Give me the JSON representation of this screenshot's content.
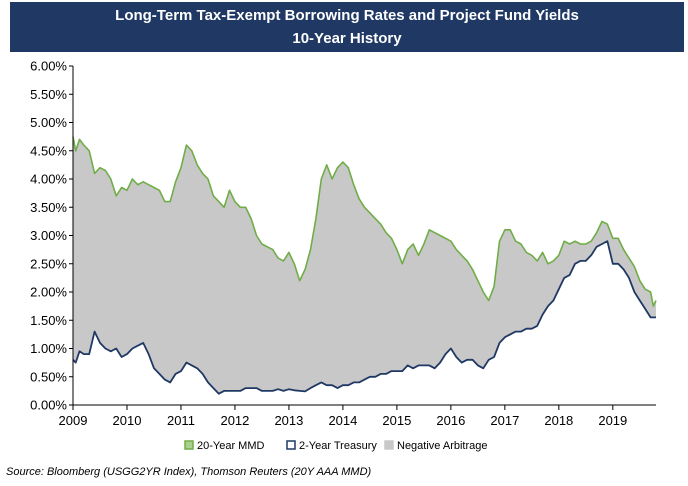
{
  "header": {
    "title": "Long-Term Tax-Exempt Borrowing Rates and Project Fund Yields",
    "subtitle": "10-Year History"
  },
  "source": "Source: Bloomberg (USGG2YR Index), Thomson Reuters (20Y AAA MMD)",
  "colors": {
    "mmd": "#70ad47",
    "treasury": "#1f3864",
    "fill": "#c8c8c8",
    "title_bg": "#1f3864"
  },
  "chart_data": {
    "type": "area",
    "title": "Long-Term Tax-Exempt Borrowing Rates and Project Fund Yields",
    "subtitle": "10-Year History",
    "x_ticks": [
      "2009",
      "2010",
      "2011",
      "2012",
      "2013",
      "2014",
      "2015",
      "2016",
      "2017",
      "2018",
      "2019"
    ],
    "y_ticks": [
      "0.00%",
      "0.50%",
      "1.00%",
      "1.50%",
      "2.00%",
      "2.50%",
      "3.00%",
      "3.50%",
      "4.00%",
      "4.50%",
      "5.00%",
      "5.50%",
      "6.00%"
    ],
    "xlim": [
      2009.0,
      2019.8
    ],
    "ylim": [
      0,
      6
    ],
    "legend_position": "bottom",
    "grid": false,
    "series": [
      {
        "name": "20-Year MMD",
        "x": [
          2009.0,
          2009.05,
          2009.12,
          2009.2,
          2009.3,
          2009.4,
          2009.5,
          2009.6,
          2009.7,
          2009.8,
          2009.9,
          2010.0,
          2010.1,
          2010.2,
          2010.3,
          2010.4,
          2010.5,
          2010.6,
          2010.7,
          2010.8,
          2010.9,
          2011.0,
          2011.1,
          2011.2,
          2011.3,
          2011.4,
          2011.5,
          2011.6,
          2011.7,
          2011.8,
          2011.9,
          2012.0,
          2012.1,
          2012.2,
          2012.3,
          2012.4,
          2012.5,
          2012.6,
          2012.7,
          2012.8,
          2012.9,
          2013.0,
          2013.1,
          2013.2,
          2013.3,
          2013.4,
          2013.5,
          2013.6,
          2013.7,
          2013.8,
          2013.9,
          2014.0,
          2014.1,
          2014.2,
          2014.3,
          2014.4,
          2014.5,
          2014.6,
          2014.7,
          2014.8,
          2014.9,
          2015.0,
          2015.1,
          2015.2,
          2015.3,
          2015.4,
          2015.5,
          2015.6,
          2015.7,
          2015.8,
          2015.9,
          2016.0,
          2016.1,
          2016.2,
          2016.3,
          2016.4,
          2016.5,
          2016.6,
          2016.7,
          2016.8,
          2016.9,
          2017.0,
          2017.1,
          2017.2,
          2017.3,
          2017.4,
          2017.5,
          2017.6,
          2017.7,
          2017.8,
          2017.9,
          2018.0,
          2018.1,
          2018.2,
          2018.3,
          2018.4,
          2018.5,
          2018.6,
          2018.7,
          2018.8,
          2018.9,
          2019.0,
          2019.1,
          2019.2,
          2019.3,
          2019.4,
          2019.5,
          2019.6,
          2019.7,
          2019.75,
          2019.8
        ],
        "values": [
          4.75,
          4.5,
          4.7,
          4.6,
          4.5,
          4.1,
          4.2,
          4.15,
          4.0,
          3.7,
          3.85,
          3.8,
          4.0,
          3.9,
          3.95,
          3.9,
          3.85,
          3.8,
          3.6,
          3.6,
          3.95,
          4.2,
          4.6,
          4.5,
          4.25,
          4.1,
          4.0,
          3.7,
          3.6,
          3.5,
          3.8,
          3.6,
          3.5,
          3.5,
          3.3,
          3.0,
          2.85,
          2.8,
          2.75,
          2.6,
          2.55,
          2.7,
          2.5,
          2.2,
          2.4,
          2.75,
          3.3,
          4.0,
          4.25,
          4.0,
          4.2,
          4.3,
          4.2,
          3.9,
          3.65,
          3.5,
          3.4,
          3.3,
          3.2,
          3.05,
          2.95,
          2.75,
          2.5,
          2.75,
          2.85,
          2.65,
          2.85,
          3.1,
          3.05,
          3.0,
          2.95,
          2.9,
          2.75,
          2.65,
          2.55,
          2.4,
          2.2,
          2.0,
          1.85,
          2.1,
          2.9,
          3.1,
          3.1,
          2.9,
          2.85,
          2.7,
          2.65,
          2.55,
          2.7,
          2.5,
          2.55,
          2.65,
          2.9,
          2.85,
          2.9,
          2.85,
          2.85,
          2.9,
          3.05,
          3.25,
          3.2,
          2.95,
          2.95,
          2.75,
          2.6,
          2.45,
          2.2,
          2.05,
          2.0,
          1.75,
          1.85
        ]
      },
      {
        "name": "2-Year Treasury",
        "x": [
          2009.0,
          2009.05,
          2009.12,
          2009.2,
          2009.3,
          2009.4,
          2009.5,
          2009.6,
          2009.7,
          2009.8,
          2009.9,
          2010.0,
          2010.1,
          2010.2,
          2010.3,
          2010.4,
          2010.5,
          2010.6,
          2010.7,
          2010.8,
          2010.9,
          2011.0,
          2011.1,
          2011.2,
          2011.3,
          2011.4,
          2011.5,
          2011.6,
          2011.7,
          2011.8,
          2011.9,
          2012.0,
          2012.1,
          2012.2,
          2012.3,
          2012.4,
          2012.5,
          2012.6,
          2012.7,
          2012.8,
          2012.9,
          2013.0,
          2013.1,
          2013.2,
          2013.3,
          2013.4,
          2013.5,
          2013.6,
          2013.7,
          2013.8,
          2013.9,
          2014.0,
          2014.1,
          2014.2,
          2014.3,
          2014.4,
          2014.5,
          2014.6,
          2014.7,
          2014.8,
          2014.9,
          2015.0,
          2015.1,
          2015.2,
          2015.3,
          2015.4,
          2015.5,
          2015.6,
          2015.7,
          2015.8,
          2015.9,
          2016.0,
          2016.1,
          2016.2,
          2016.3,
          2016.4,
          2016.5,
          2016.6,
          2016.7,
          2016.8,
          2016.9,
          2017.0,
          2017.1,
          2017.2,
          2017.3,
          2017.4,
          2017.5,
          2017.6,
          2017.7,
          2017.8,
          2017.9,
          2018.0,
          2018.1,
          2018.2,
          2018.3,
          2018.4,
          2018.5,
          2018.6,
          2018.7,
          2018.8,
          2018.9,
          2019.0,
          2019.1,
          2019.2,
          2019.3,
          2019.4,
          2019.5,
          2019.6,
          2019.7,
          2019.75,
          2019.8
        ],
        "values": [
          0.8,
          0.75,
          0.95,
          0.9,
          0.9,
          1.3,
          1.1,
          1.0,
          0.95,
          1.0,
          0.85,
          0.9,
          1.0,
          1.05,
          1.1,
          0.9,
          0.65,
          0.55,
          0.45,
          0.4,
          0.55,
          0.6,
          0.75,
          0.7,
          0.65,
          0.55,
          0.4,
          0.3,
          0.2,
          0.25,
          0.25,
          0.25,
          0.25,
          0.3,
          0.3,
          0.3,
          0.25,
          0.25,
          0.25,
          0.28,
          0.25,
          0.28,
          0.26,
          0.25,
          0.24,
          0.3,
          0.35,
          0.4,
          0.35,
          0.35,
          0.3,
          0.35,
          0.35,
          0.4,
          0.4,
          0.45,
          0.5,
          0.5,
          0.55,
          0.55,
          0.6,
          0.6,
          0.6,
          0.7,
          0.65,
          0.7,
          0.7,
          0.7,
          0.65,
          0.75,
          0.9,
          1.0,
          0.85,
          0.75,
          0.8,
          0.8,
          0.7,
          0.65,
          0.8,
          0.85,
          1.1,
          1.2,
          1.25,
          1.3,
          1.3,
          1.35,
          1.35,
          1.4,
          1.6,
          1.75,
          1.85,
          2.05,
          2.25,
          2.3,
          2.5,
          2.55,
          2.55,
          2.65,
          2.8,
          2.85,
          2.9,
          2.5,
          2.5,
          2.4,
          2.25,
          2.0,
          1.85,
          1.7,
          1.55,
          1.55,
          1.55
        ]
      },
      {
        "name": "Negative Arbitrage",
        "values": []
      }
    ]
  }
}
